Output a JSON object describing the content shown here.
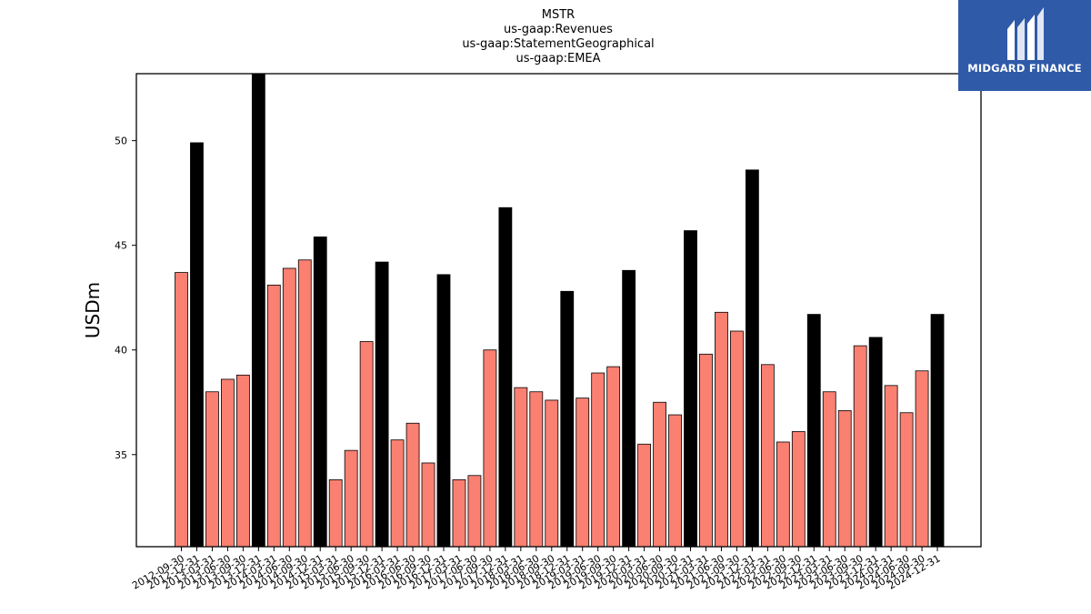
{
  "chart_data": {
    "type": "bar",
    "title_lines": [
      "MSTR",
      "us-gaap:Revenues",
      "us-gaap:StatementGeographical",
      "us-gaap:EMEA"
    ],
    "xlabel": "",
    "ylabel": "USDm",
    "ylim": [
      30.6,
      53.2
    ],
    "yticks": [
      35,
      40,
      45,
      50
    ],
    "colors": {
      "quarter": "#fa8072",
      "annual": "#000000",
      "edge": "#000000"
    },
    "categories": [
      "2012-09-30",
      "2012-12-31",
      "2013-03-31",
      "2013-06-30",
      "2013-09-30",
      "2013-12-31",
      "2014-03-31",
      "2014-06-30",
      "2014-09-30",
      "2014-12-31",
      "2015-03-31",
      "2015-06-30",
      "2015-09-30",
      "2015-12-31",
      "2016-03-31",
      "2016-06-30",
      "2016-09-30",
      "2016-12-31",
      "2017-03-31",
      "2017-06-30",
      "2017-09-30",
      "2017-12-31",
      "2018-03-31",
      "2018-06-30",
      "2018-09-30",
      "2018-12-31",
      "2019-03-31",
      "2019-06-30",
      "2019-09-30",
      "2019-12-31",
      "2020-03-31",
      "2020-06-30",
      "2020-09-30",
      "2020-12-31",
      "2021-03-31",
      "2021-06-30",
      "2021-09-30",
      "2021-12-31",
      "2022-03-31",
      "2022-06-30",
      "2022-09-30",
      "2022-12-31",
      "2023-03-31",
      "2023-06-30",
      "2023-09-30",
      "2023-12-31",
      "2024-03-31",
      "2024-06-30",
      "2024-09-30",
      "2024-12-31"
    ],
    "values": [
      43.7,
      49.9,
      38.0,
      38.6,
      38.8,
      53.2,
      43.1,
      43.9,
      44.3,
      45.4,
      33.8,
      35.2,
      40.4,
      44.2,
      35.7,
      36.5,
      34.6,
      43.6,
      33.8,
      34.0,
      40.0,
      46.8,
      38.2,
      38.0,
      37.6,
      42.8,
      37.7,
      38.9,
      39.2,
      43.8,
      35.5,
      37.5,
      36.9,
      45.7,
      39.8,
      41.8,
      40.9,
      48.6,
      39.3,
      35.6,
      36.1,
      41.7,
      38.0,
      37.1,
      40.2,
      40.6,
      38.3,
      37.0,
      39.0,
      41.7
    ],
    "annual_flags": [
      false,
      true,
      false,
      false,
      false,
      true,
      false,
      false,
      false,
      true,
      false,
      false,
      false,
      true,
      false,
      false,
      false,
      true,
      false,
      false,
      false,
      true,
      false,
      false,
      false,
      true,
      false,
      false,
      false,
      true,
      false,
      false,
      false,
      true,
      false,
      false,
      false,
      true,
      false,
      false,
      false,
      true,
      false,
      false,
      false,
      true,
      false,
      false,
      false,
      true
    ]
  },
  "logo": {
    "text": "MIDGARD FINANCE",
    "color": "#2f5aa8"
  }
}
